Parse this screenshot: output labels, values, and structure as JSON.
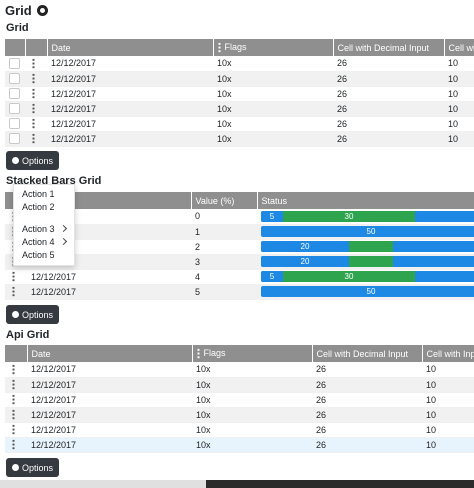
{
  "page": {
    "title": "Grid"
  },
  "grid": {
    "title": "Grid",
    "columns": [
      "Date",
      "Flags",
      "Cell with Decimal Input",
      "Cell with I"
    ],
    "rows": [
      [
        "12/12/2017",
        "10x",
        "26",
        "10"
      ],
      [
        "12/12/2017",
        "10x",
        "26",
        "10"
      ],
      [
        "12/12/2017",
        "10x",
        "26",
        "10"
      ],
      [
        "12/12/2017",
        "10x",
        "26",
        "10"
      ],
      [
        "12/12/2017",
        "10x",
        "26",
        "10"
      ],
      [
        "12/12/2017",
        "10x",
        "26",
        "10"
      ]
    ],
    "options_label": "Options"
  },
  "stacked": {
    "title": "Stacked Bars Grid",
    "columns": [
      "Value (%)",
      "Status"
    ],
    "rows": [
      {
        "date": "",
        "value": "0",
        "segments": [
          {
            "label": "5",
            "pct": 5,
            "color": "#1e88e5"
          },
          {
            "label": "30",
            "pct": 30,
            "color": "#2ea44f"
          }
        ]
      },
      {
        "date": "",
        "value": "1",
        "segments": [
          {
            "label": "50",
            "pct": 50,
            "color": "#1e88e5"
          }
        ]
      },
      {
        "date": "",
        "value": "2",
        "segments": [
          {
            "label": "20",
            "pct": 20,
            "color": "#1e88e5"
          },
          {
            "label": "",
            "pct": 10,
            "color": "#2ea44f"
          }
        ]
      },
      {
        "date": "",
        "value": "3",
        "segments": [
          {
            "label": "20",
            "pct": 20,
            "color": "#1e88e5"
          },
          {
            "label": "",
            "pct": 10,
            "color": "#2ea44f"
          }
        ]
      },
      {
        "date": "12/12/2017",
        "value": "4",
        "segments": [
          {
            "label": "5",
            "pct": 5,
            "color": "#1e88e5"
          },
          {
            "label": "30",
            "pct": 30,
            "color": "#2ea44f"
          }
        ]
      },
      {
        "date": "12/12/2017",
        "value": "5",
        "segments": [
          {
            "label": "50",
            "pct": 50,
            "color": "#1e88e5"
          }
        ]
      }
    ],
    "options_label": "Options"
  },
  "menu": {
    "items": [
      {
        "label": "Action 1",
        "submenu": false
      },
      {
        "label": "Action 2",
        "submenu": false
      },
      {
        "label": "Action 3",
        "submenu": true
      },
      {
        "label": "Action 4",
        "submenu": true
      },
      {
        "label": "Action 5",
        "submenu": false
      }
    ]
  },
  "api": {
    "title": "Api Grid",
    "columns": [
      "Date",
      "Flags",
      "Cell with Decimal Input",
      "Cell with Inpu"
    ],
    "rows": [
      [
        "12/12/2017",
        "10x",
        "26",
        "10"
      ],
      [
        "12/12/2017",
        "10x",
        "26",
        "10"
      ],
      [
        "12/12/2017",
        "10x",
        "26",
        "10"
      ],
      [
        "12/12/2017",
        "10x",
        "26",
        "10"
      ],
      [
        "12/12/2017",
        "10x",
        "26",
        "10"
      ],
      [
        "12/12/2017",
        "10x",
        "26",
        "10"
      ]
    ],
    "options_label": "Options"
  },
  "colors": {
    "header": "#8f8f8f",
    "button": "#343a40",
    "blue": "#1e88e5",
    "green": "#2ea44f"
  }
}
